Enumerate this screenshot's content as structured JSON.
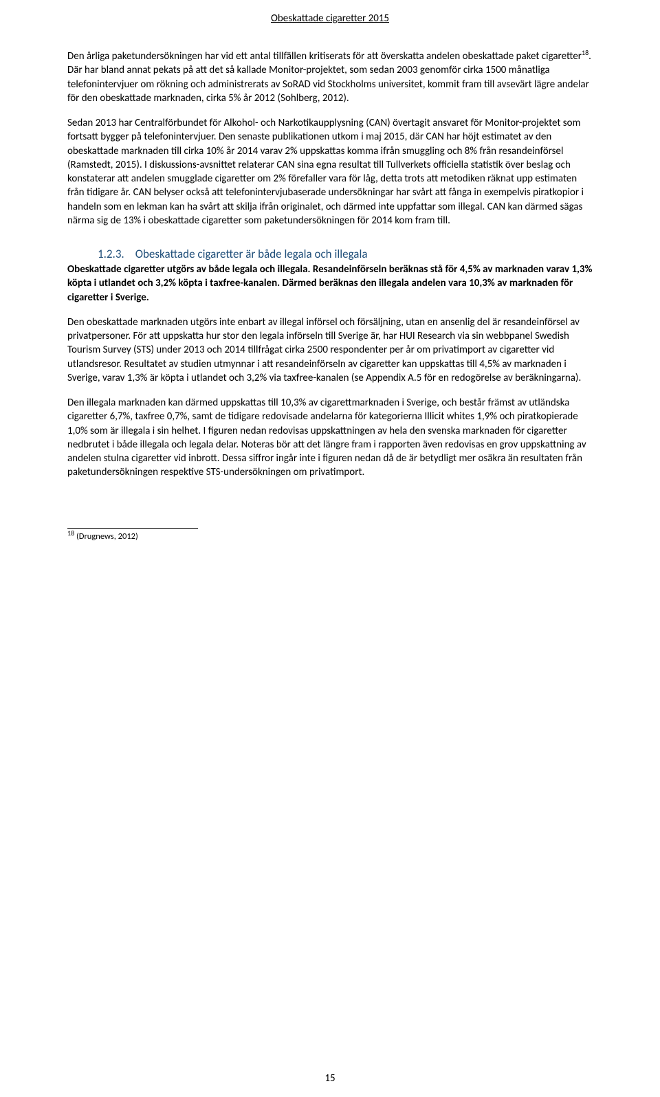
{
  "header": {
    "title": "Obeskattade cigaretter 2015"
  },
  "paragraphs": {
    "p1a": "Den årliga paketundersökningen har vid ett antal tillfällen kritiserats för att överskatta andelen obeskattade paket cigaretter",
    "p1sup": "18",
    "p1b": ". Där har bland annat pekats på att det så kallade Monitor-projektet, som sedan 2003 genomför cirka 1500 månatliga telefonintervjuer om rökning och administrerats av SoRAD vid Stockholms universitet, kommit fram till avsevärt lägre andelar för den obeskattade marknaden, cirka 5% år 2012 (Sohlberg, 2012).",
    "p2": "Sedan 2013 har Centralförbundet för Alkohol- och Narkotikaupplysning (CAN) övertagit ansvaret för Monitor-projektet som fortsatt bygger på telefonintervjuer. Den senaste publikationen utkom i maj 2015, där CAN har höjt estimatet av den obeskattade marknaden till cirka 10% år 2014 varav 2% uppskattas komma ifrån smuggling och 8% från resandeinförsel (Ramstedt, 2015). I diskussions-avsnittet relaterar CAN sina egna resultat till Tullverkets officiella statistik över beslag och konstaterar att andelen smugglade cigaretter om 2% förefaller vara för låg, detta trots att metodiken räknat upp estimaten från tidigare år. CAN belyser också att telefonintervjubaserade undersökningar har svårt att fånga in exempelvis piratkopior i handeln som en lekman kan ha svårt att skilja ifrån originalet, och därmed inte uppfattar som illegal. CAN kan därmed sägas närma sig de 13% i obeskattade cigaretter som paketundersökningen för 2014 kom fram till."
  },
  "subheading": {
    "number": "1.2.3.",
    "title": "Obeskattade cigaretter är både legala och illegala"
  },
  "bold_intro": "Obeskattade cigaretter utgörs av både legala och illegala. Resandeinförseln beräknas stå för 4,5% av marknaden varav 1,3% köpta i utlandet och 3,2% köpta i taxfree-kanalen. Därmed beräknas den illegala andelen vara 10,3% av marknaden för cigaretter i Sverige.",
  "paragraphs2": {
    "p3": "Den obeskattade marknaden utgörs inte enbart av illegal införsel och försäljning, utan en ansenlig del är resandeinförsel av privatpersoner. För att uppskatta hur stor den legala införseln till Sverige är, har HUI Research via sin webbpanel Swedish Tourism Survey (STS) under 2013 och 2014 tillfrågat cirka 2500 respondenter per år om privatimport av cigaretter vid utlandsresor. Resultatet av studien utmynnar i att resandeinförseln av cigaretter kan uppskattas till 4,5% av marknaden i Sverige, varav 1,3% är köpta i utlandet och 3,2% via taxfree-kanalen (se Appendix A.5 för en redogörelse av beräkningarna).",
    "p4": "Den illegala marknaden kan därmed uppskattas till 10,3% av cigarettmarknaden i Sverige, och består främst av utländska cigaretter 6,7%, taxfree 0,7%, samt de tidigare redovisade andelarna för kategorierna Illicit whites 1,9% och piratkopierade 1,0% som är illegala i sin helhet. I figuren nedan redovisas uppskattningen av hela den svenska marknaden för cigaretter nedbrutet i både illegala och legala delar. Noteras bör att det längre fram i rapporten även redovisas en grov uppskattning av andelen stulna cigaretter vid inbrott. Dessa siffror ingår inte i figuren nedan då de är betydligt mer osäkra än resultaten från paketundersökningen respektive STS-undersökningen om privatimport."
  },
  "footnote": {
    "marker": "18",
    "text": " (Drugnews, 2012)"
  },
  "page_number": "15"
}
